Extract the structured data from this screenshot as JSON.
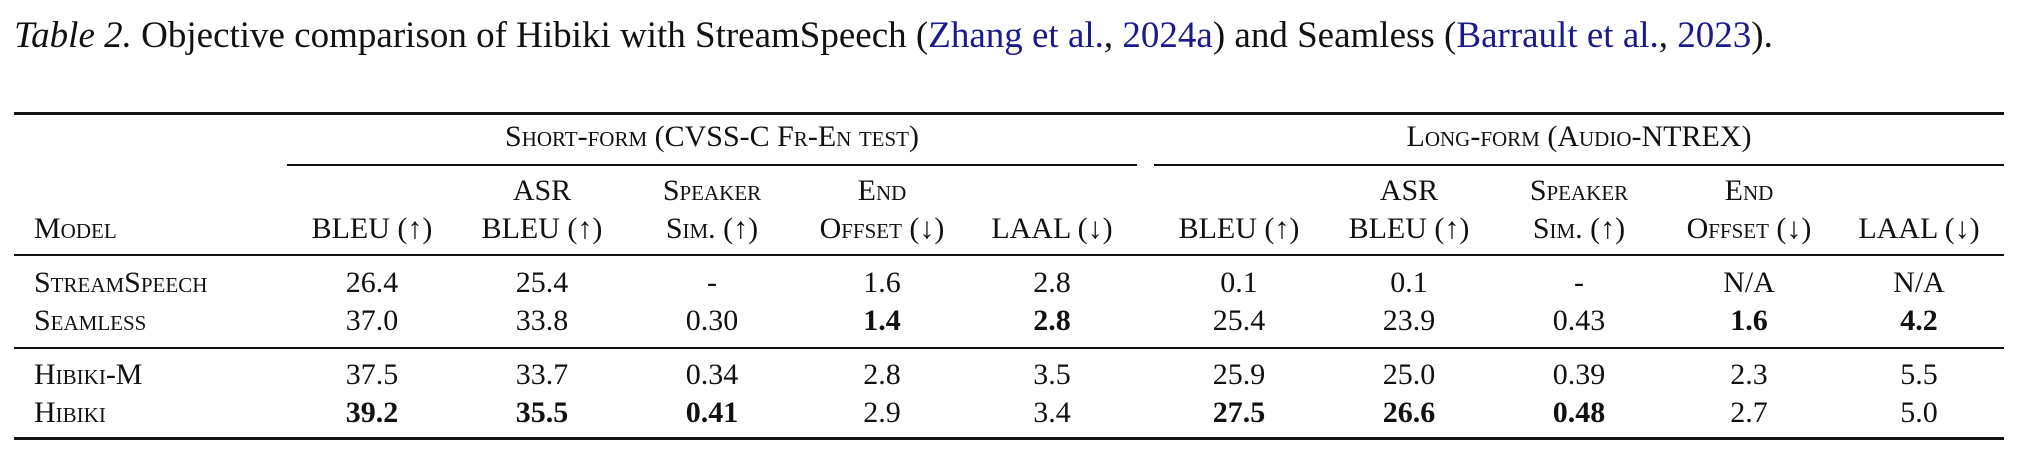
{
  "caption": {
    "label": "Table 2.",
    "text_1": " Objective comparison of Hibiki with StreamSpeech (",
    "cite_1a": "Zhang et al.",
    "sep_1": ", ",
    "cite_1b": "2024a",
    "text_2": ") and Seamless (",
    "cite_2a": "Barrault et al.",
    "sep_2": ", ",
    "cite_2b": "2023",
    "text_3": ")."
  },
  "table": {
    "groups": {
      "short": "Short-form (CVSS-C Fr-En test)",
      "long": "Long-form (Audio-NTREX)"
    },
    "headers": {
      "model": "Model",
      "bleu": "BLEU (↑)",
      "asr_1": "ASR",
      "asr_2": "BLEU (↑)",
      "spk_1": "Speaker",
      "spk_2": "Sim. (↑)",
      "end_1": "End",
      "end_2": "Offset (↓)",
      "laal": "LAAL (↓)"
    },
    "rows": [
      {
        "model": "StreamSpeech",
        "short": [
          "26.4",
          "25.4",
          "-",
          "1.6",
          "2.8"
        ],
        "long": [
          "0.1",
          "0.1",
          "-",
          "N/A",
          "N/A"
        ]
      },
      {
        "model": "Seamless",
        "short": [
          "37.0",
          "33.8",
          "0.30",
          "1.4",
          "2.8"
        ],
        "long": [
          "25.4",
          "23.9",
          "0.43",
          "1.6",
          "4.2"
        ]
      },
      {
        "model": "Hibiki-M",
        "short": [
          "37.5",
          "33.7",
          "0.34",
          "2.8",
          "3.5"
        ],
        "long": [
          "25.9",
          "25.0",
          "0.39",
          "2.3",
          "5.5"
        ]
      },
      {
        "model": "Hibiki",
        "short": [
          "39.2",
          "35.5",
          "0.41",
          "2.9",
          "3.4"
        ],
        "long": [
          "27.5",
          "26.6",
          "0.48",
          "2.7",
          "5.0"
        ]
      }
    ]
  }
}
